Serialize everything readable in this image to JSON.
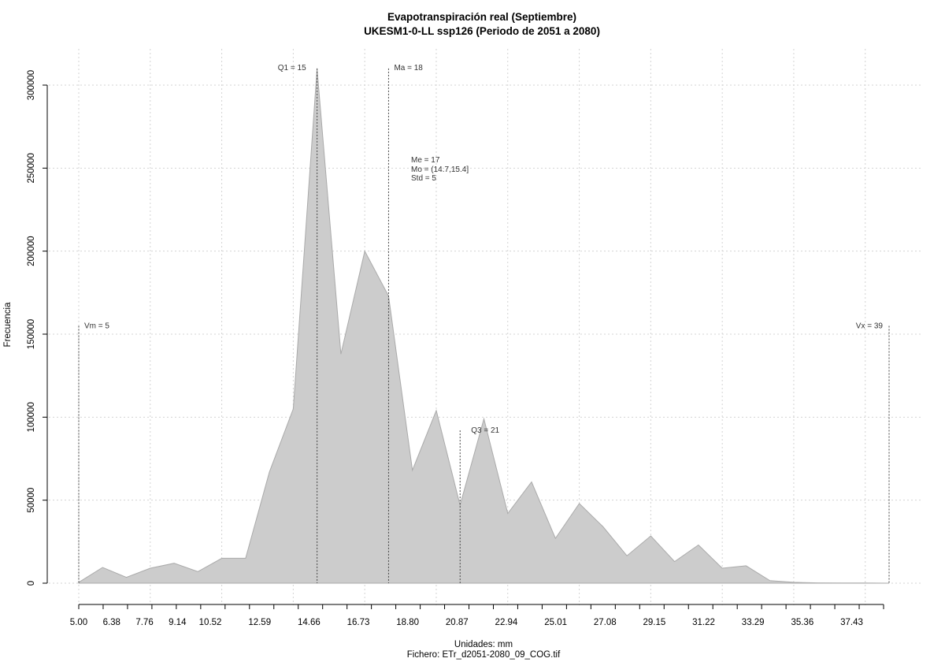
{
  "chart_data": {
    "type": "area",
    "title": "Evapotranspiración real (Septiembre)",
    "subtitle": "UKESM1-0-LL ssp126 (Periodo de 2051 a 2080)",
    "xlabel": "Unidades: mm",
    "caption": "Fichero: ETr_d2051-2080_09_COG.tif",
    "ylabel": "Frecuencia",
    "xlim": [
      5.0,
      39.0
    ],
    "ylim": [
      0,
      310000
    ],
    "grid": true,
    "x_tick_values": [
      5.0,
      6.38,
      7.76,
      9.14,
      10.52,
      12.59,
      14.66,
      16.73,
      18.8,
      20.87,
      22.94,
      25.01,
      27.08,
      29.15,
      31.22,
      33.29,
      35.36,
      37.43
    ],
    "x_tick_labels": [
      "5.00",
      "6.38",
      "7.76",
      "9.14",
      "10.52",
      "12.59",
      "14.66",
      "16.73",
      "18.80",
      "20.87",
      "22.94",
      "25.01",
      "27.08",
      "29.15",
      "31.22",
      "33.29",
      "35.36",
      "37.43"
    ],
    "y_ticks": [
      0,
      50000,
      100000,
      150000,
      200000,
      250000,
      300000
    ],
    "y_tick_labels": [
      "0",
      "50000",
      "100000",
      "150000",
      "200000",
      "250000",
      "300000"
    ],
    "x": [
      5.0,
      6.0,
      7.0,
      8.0,
      9.0,
      10.0,
      11.0,
      12.0,
      13.0,
      14.0,
      15.0,
      16.0,
      17.0,
      18.0,
      19.0,
      20.0,
      21.0,
      22.0,
      23.0,
      24.0,
      25.0,
      26.0,
      27.0,
      28.0,
      29.0,
      30.0,
      31.0,
      32.0,
      33.0,
      34.0,
      35.0,
      36.0,
      37.0,
      38.0,
      39.0
    ],
    "y": [
      500,
      9500,
      3500,
      9000,
      12000,
      7000,
      15000,
      15000,
      67000,
      105000,
      310000,
      138000,
      200000,
      173000,
      68000,
      104000,
      47000,
      99000,
      42000,
      61000,
      27000,
      48000,
      34000,
      16500,
      28500,
      13000,
      23000,
      9000,
      10500,
      1500,
      500,
      200,
      100,
      100,
      0
    ],
    "markers": [
      {
        "label": "Vm = 5",
        "x": 5.0,
        "top": 155000
      },
      {
        "label": "Q1 = 15",
        "x": 15.0,
        "top": 310000
      },
      {
        "label": "Ma = 18",
        "x": 18.0,
        "top": 310000
      },
      {
        "label": "Q3 = 21",
        "x": 21.0,
        "top": 92000
      },
      {
        "label": "Vx = 39",
        "x": 39.0,
        "top": 155000
      }
    ],
    "stats": [
      "Me = 17",
      "Mo = (14.7,15.4]",
      "Std = 5"
    ]
  }
}
